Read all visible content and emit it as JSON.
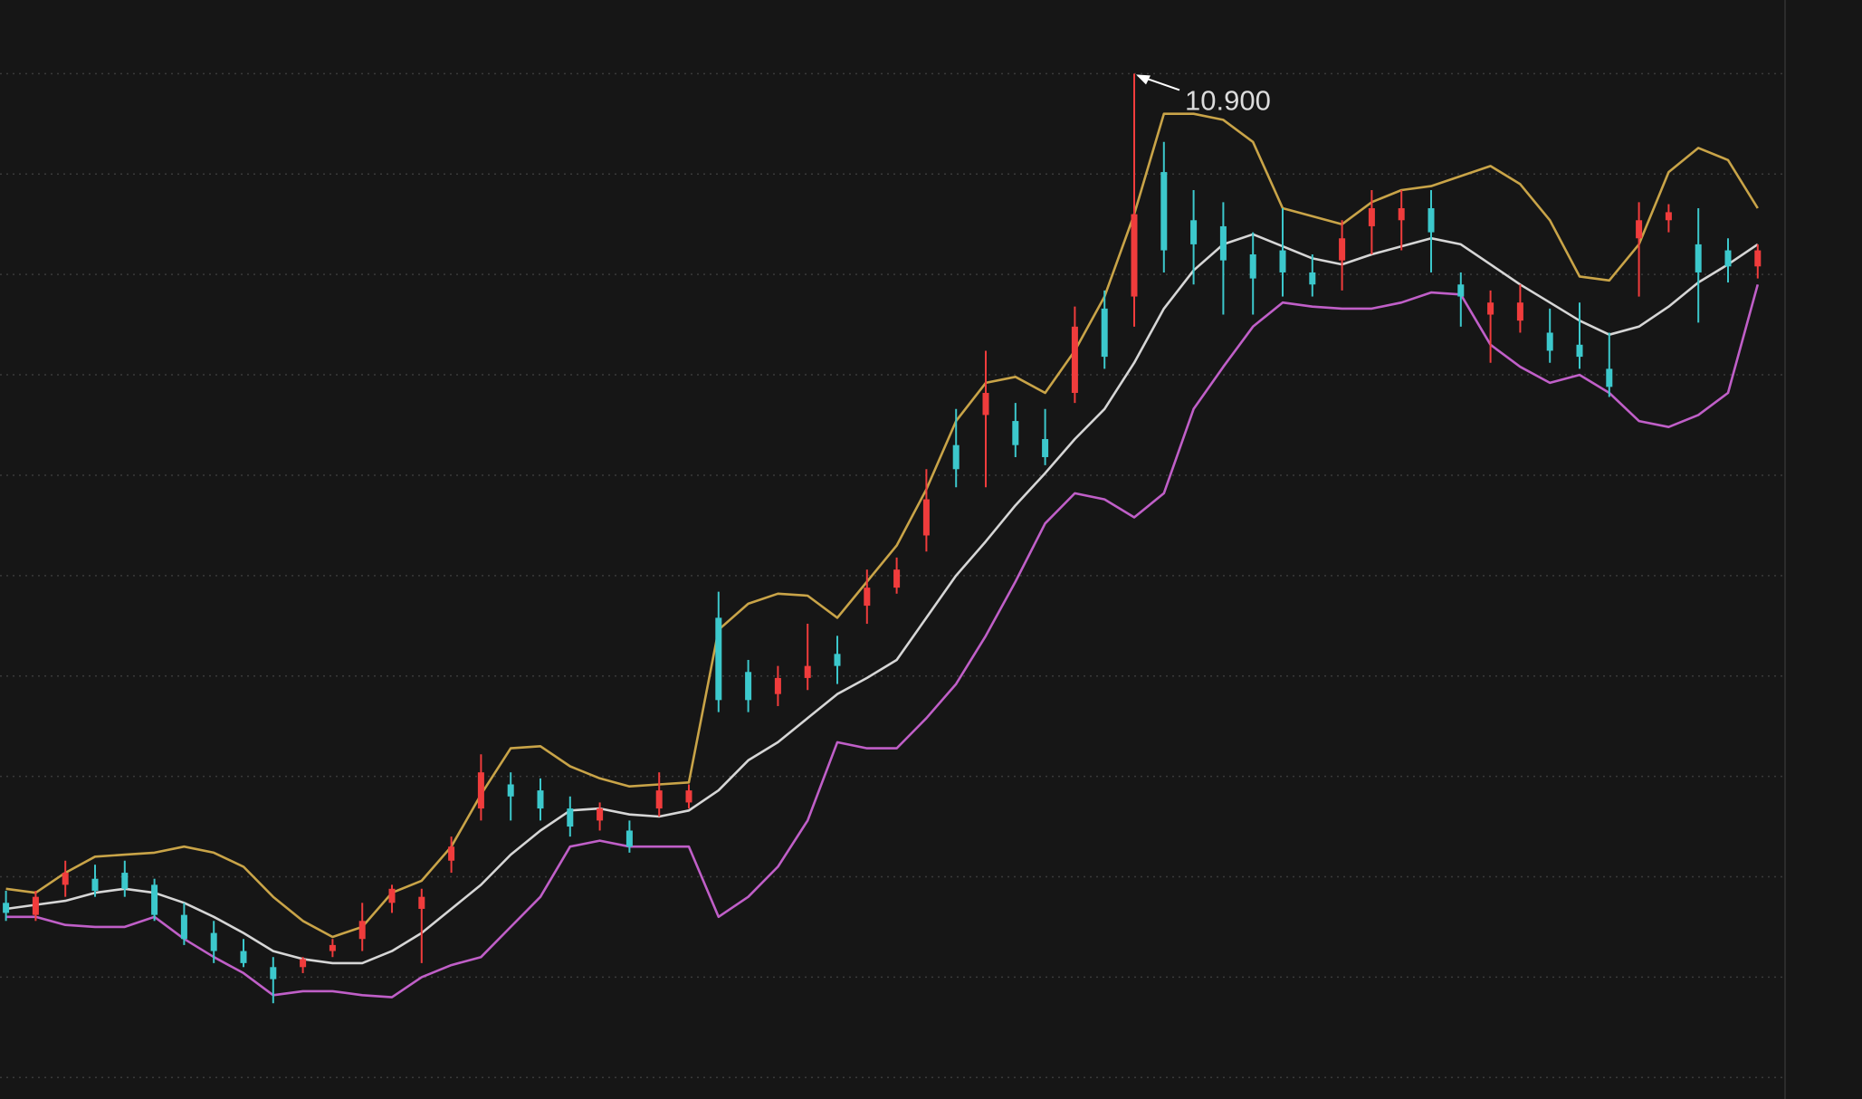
{
  "chart_data": {
    "type": "candlestick",
    "open": [
      6.77,
      6.71,
      6.86,
      6.89,
      6.92,
      6.86,
      6.71,
      6.62,
      6.53,
      6.45,
      6.45,
      6.53,
      6.59,
      6.77,
      6.74,
      6.98,
      7.24,
      7.36,
      7.33,
      7.24,
      7.18,
      7.13,
      7.24,
      7.27,
      8.19,
      7.92,
      7.81,
      7.89,
      8.01,
      8.25,
      8.34,
      8.6,
      9.05,
      9.2,
      9.17,
      9.08,
      9.31,
      9.73,
      9.79,
      10.41,
      10.17,
      10.14,
      10.0,
      10.02,
      9.91,
      9.97,
      10.14,
      10.17,
      10.23,
      9.85,
      9.7,
      9.67,
      9.61,
      9.55,
      9.43,
      10.08,
      10.17,
      10.05,
      10.02,
      9.94
    ],
    "high": [
      6.83,
      6.83,
      6.98,
      6.96,
      6.98,
      6.89,
      6.77,
      6.68,
      6.59,
      6.5,
      6.5,
      6.59,
      6.77,
      6.86,
      6.84,
      7.1,
      7.51,
      7.42,
      7.39,
      7.3,
      7.27,
      7.18,
      7.42,
      7.36,
      8.32,
      7.98,
      7.95,
      8.16,
      8.1,
      8.43,
      8.49,
      8.93,
      9.23,
      9.52,
      9.26,
      9.23,
      9.74,
      9.82,
      10.9,
      10.56,
      10.32,
      10.26,
      10.11,
      10.23,
      10.0,
      10.17,
      10.32,
      10.32,
      10.32,
      9.91,
      9.82,
      9.85,
      9.73,
      9.76,
      9.61,
      10.26,
      10.25,
      10.23,
      10.08,
      10.05
    ],
    "low": [
      6.68,
      6.68,
      6.8,
      6.8,
      6.8,
      6.68,
      6.56,
      6.47,
      6.45,
      6.27,
      6.42,
      6.5,
      6.53,
      6.72,
      6.47,
      6.92,
      7.18,
      7.18,
      7.18,
      7.1,
      7.13,
      7.02,
      7.2,
      7.24,
      7.72,
      7.72,
      7.75,
      7.83,
      7.86,
      8.16,
      8.31,
      8.52,
      8.84,
      8.84,
      8.99,
      8.95,
      9.26,
      9.43,
      9.64,
      9.91,
      9.85,
      9.7,
      9.7,
      9.79,
      9.79,
      9.82,
      10.0,
      10.02,
      9.91,
      9.64,
      9.46,
      9.61,
      9.46,
      9.43,
      9.29,
      9.79,
      10.11,
      9.66,
      9.86,
      9.88
    ],
    "close": [
      6.72,
      6.8,
      6.92,
      6.83,
      6.84,
      6.71,
      6.59,
      6.53,
      6.47,
      6.39,
      6.49,
      6.56,
      6.68,
      6.84,
      6.8,
      7.05,
      7.42,
      7.3,
      7.24,
      7.15,
      7.24,
      7.05,
      7.33,
      7.33,
      7.78,
      7.78,
      7.89,
      7.95,
      7.95,
      8.34,
      8.43,
      8.78,
      8.93,
      9.31,
      9.05,
      8.99,
      9.64,
      9.49,
      10.2,
      10.02,
      10.05,
      9.97,
      9.88,
      9.91,
      9.85,
      10.08,
      10.23,
      10.23,
      10.11,
      9.79,
      9.76,
      9.76,
      9.52,
      9.49,
      9.34,
      10.17,
      10.21,
      9.91,
      9.94,
      10.02
    ],
    "up_color": "#f03c3c",
    "down_color": "#3cc8cc",
    "overlays": [
      {
        "color": "#c9a448",
        "values": [
          6.84,
          6.82,
          6.92,
          7.0,
          7.01,
          7.02,
          7.05,
          7.02,
          6.95,
          6.8,
          6.68,
          6.6,
          6.65,
          6.82,
          6.88,
          7.05,
          7.31,
          7.54,
          7.55,
          7.45,
          7.39,
          7.35,
          7.36,
          7.37,
          8.13,
          8.26,
          8.31,
          8.3,
          8.19,
          8.37,
          8.55,
          8.83,
          9.17,
          9.36,
          9.39,
          9.31,
          9.52,
          9.79,
          10.2,
          10.7,
          10.7,
          10.67,
          10.56,
          10.23,
          10.19,
          10.15,
          10.26,
          10.32,
          10.34,
          10.39,
          10.44,
          10.35,
          10.17,
          9.89,
          9.87,
          10.05,
          10.41,
          10.53,
          10.47,
          10.23
        ]
      },
      {
        "color": "#d6d6d6",
        "values": [
          6.74,
          6.76,
          6.78,
          6.82,
          6.84,
          6.82,
          6.77,
          6.7,
          6.62,
          6.53,
          6.49,
          6.47,
          6.47,
          6.53,
          6.62,
          6.74,
          6.86,
          7.01,
          7.13,
          7.23,
          7.24,
          7.21,
          7.2,
          7.23,
          7.33,
          7.48,
          7.57,
          7.69,
          7.81,
          7.89,
          7.98,
          8.19,
          8.4,
          8.57,
          8.75,
          8.91,
          9.08,
          9.23,
          9.46,
          9.73,
          9.92,
          10.05,
          10.1,
          10.04,
          9.98,
          9.95,
          10.0,
          10.04,
          10.08,
          10.05,
          9.95,
          9.85,
          9.76,
          9.67,
          9.6,
          9.64,
          9.74,
          9.86,
          9.95,
          10.05
        ]
      },
      {
        "color": "#c05fc8",
        "values": [
          6.7,
          6.7,
          6.66,
          6.65,
          6.65,
          6.7,
          6.59,
          6.5,
          6.42,
          6.31,
          6.33,
          6.33,
          6.31,
          6.3,
          6.4,
          6.46,
          6.5,
          6.65,
          6.8,
          7.05,
          7.08,
          7.05,
          7.05,
          7.05,
          6.7,
          6.8,
          6.95,
          7.18,
          7.57,
          7.54,
          7.54,
          7.69,
          7.86,
          8.1,
          8.37,
          8.66,
          8.81,
          8.78,
          8.69,
          8.81,
          9.23,
          9.44,
          9.64,
          9.76,
          9.74,
          9.73,
          9.73,
          9.76,
          9.81,
          9.8,
          9.55,
          9.44,
          9.36,
          9.4,
          9.31,
          9.17,
          9.14,
          9.2,
          9.31,
          9.85
        ]
      }
    ],
    "annotation": "10.900",
    "ylim": [
      5.793,
      11.267
    ],
    "yticks": [
      10.9,
      10.4,
      9.9,
      9.4,
      8.9,
      8.4,
      7.9,
      7.4,
      6.9,
      6.4,
      5.9
    ],
    "grid": true
  }
}
